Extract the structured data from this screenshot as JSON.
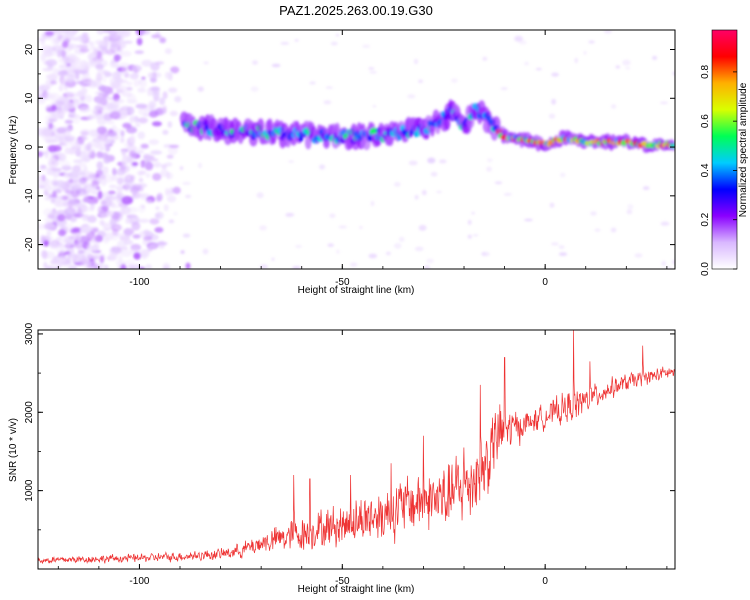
{
  "title": "PAZ1.2025.263.00.19.G30",
  "chart_data": [
    {
      "type": "heatmap",
      "title": "PAZ1.2025.263.00.19.G30",
      "xlabel": "Height of straight line (km)",
      "ylabel": "Frequency (Hz)",
      "xlim": [
        -125,
        32
      ],
      "ylim": [
        -25,
        24
      ],
      "xticks": [
        {
          "value": -100,
          "label": "-100"
        },
        {
          "value": -50,
          "label": "-50"
        },
        {
          "value": 0,
          "label": "0"
        }
      ],
      "yticks": [
        {
          "value": 20,
          "label": "20"
        },
        {
          "value": 10,
          "label": "10"
        },
        {
          "value": 0,
          "label": "0"
        },
        {
          "value": -10,
          "label": "-10"
        },
        {
          "value": -20,
          "label": "-20"
        }
      ],
      "ridge": [
        {
          "x": -88,
          "y": 4.5
        },
        {
          "x": -80,
          "y": 3.5
        },
        {
          "x": -70,
          "y": 3.0
        },
        {
          "x": -60,
          "y": 2.5
        },
        {
          "x": -50,
          "y": 2.0
        },
        {
          "x": -40,
          "y": 2.5
        },
        {
          "x": -35,
          "y": 3.0
        },
        {
          "x": -28,
          "y": 4.5
        },
        {
          "x": -23,
          "y": 7.0
        },
        {
          "x": -20,
          "y": 4.0
        },
        {
          "x": -17,
          "y": 8.0
        },
        {
          "x": -13,
          "y": 4.5
        },
        {
          "x": -10,
          "y": 2.0
        },
        {
          "x": -5,
          "y": 1.5
        },
        {
          "x": 0,
          "y": 0.5
        },
        {
          "x": 5,
          "y": 2.0
        },
        {
          "x": 10,
          "y": 1.0
        },
        {
          "x": 15,
          "y": 1.0
        },
        {
          "x": 20,
          "y": 1.0
        },
        {
          "x": 25,
          "y": 0.5
        },
        {
          "x": 32,
          "y": 0.5
        }
      ],
      "colorbar": {
        "label": "Normalized spectral amplitude",
        "range": [
          0,
          0.97
        ],
        "ticks": [
          {
            "value": 0.0,
            "label": "0.0"
          },
          {
            "value": 0.2,
            "label": "0.2"
          },
          {
            "value": 0.4,
            "label": "0.4"
          },
          {
            "value": 0.6,
            "label": "0.6"
          },
          {
            "value": 0.8,
            "label": "0.8"
          }
        ],
        "stops": [
          "#ffffff",
          "#d9b8ff",
          "#8a00ff",
          "#0000ff",
          "#00ccff",
          "#00ff55",
          "#d9ff00",
          "#ffb000",
          "#ff0000",
          "#ff0066"
        ]
      }
    },
    {
      "type": "line",
      "xlabel": "Height of straight line (km)",
      "ylabel": "SNR (10 * v/v)",
      "xlim": [
        -125,
        32
      ],
      "ylim": [
        0,
        3050
      ],
      "xticks": [
        {
          "value": -100,
          "label": "-100"
        },
        {
          "value": -50,
          "label": "-50"
        },
        {
          "value": 0,
          "label": "0"
        }
      ],
      "yticks": [
        {
          "value": 1000,
          "label": "1000"
        },
        {
          "value": 2000,
          "label": "2000"
        },
        {
          "value": 3000,
          "label": "3000"
        }
      ],
      "color": "#ee3333",
      "trend": [
        {
          "x": -125,
          "y": 110,
          "noise": 70
        },
        {
          "x": -100,
          "y": 140,
          "noise": 80
        },
        {
          "x": -90,
          "y": 160,
          "noise": 90
        },
        {
          "x": -80,
          "y": 190,
          "noise": 110
        },
        {
          "x": -75,
          "y": 240,
          "noise": 140
        },
        {
          "x": -70,
          "y": 330,
          "noise": 200
        },
        {
          "x": -62,
          "y": 430,
          "noise": 330
        },
        {
          "x": -55,
          "y": 520,
          "noise": 380
        },
        {
          "x": -50,
          "y": 560,
          "noise": 420
        },
        {
          "x": -45,
          "y": 640,
          "noise": 480
        },
        {
          "x": -40,
          "y": 700,
          "noise": 520
        },
        {
          "x": -35,
          "y": 800,
          "noise": 560
        },
        {
          "x": -30,
          "y": 880,
          "noise": 600
        },
        {
          "x": -25,
          "y": 900,
          "noise": 650
        },
        {
          "x": -20,
          "y": 1050,
          "noise": 700
        },
        {
          "x": -15,
          "y": 1300,
          "noise": 750
        },
        {
          "x": -12,
          "y": 1700,
          "noise": 650
        },
        {
          "x": -8,
          "y": 1800,
          "noise": 380
        },
        {
          "x": -5,
          "y": 1850,
          "noise": 250
        },
        {
          "x": 0,
          "y": 1950,
          "noise": 220
        },
        {
          "x": 5,
          "y": 2050,
          "noise": 320
        },
        {
          "x": 10,
          "y": 2150,
          "noise": 260
        },
        {
          "x": 15,
          "y": 2280,
          "noise": 200
        },
        {
          "x": 20,
          "y": 2380,
          "noise": 170
        },
        {
          "x": 25,
          "y": 2450,
          "noise": 140
        },
        {
          "x": 32,
          "y": 2520,
          "noise": 130
        }
      ],
      "spikes": [
        {
          "x": -62,
          "y": 1200
        },
        {
          "x": -58,
          "y": 1150
        },
        {
          "x": -48,
          "y": 1200
        },
        {
          "x": -38,
          "y": 1350
        },
        {
          "x": -30,
          "y": 1700
        },
        {
          "x": -20,
          "y": 1550
        },
        {
          "x": -16,
          "y": 2350
        },
        {
          "x": -10,
          "y": 2700
        },
        {
          "x": 7,
          "y": 3050
        },
        {
          "x": 11,
          "y": 2650
        },
        {
          "x": 24,
          "y": 2850
        }
      ]
    }
  ]
}
